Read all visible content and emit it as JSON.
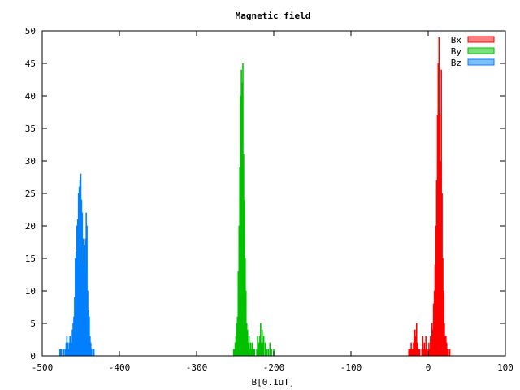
{
  "chart_data": {
    "type": "bar",
    "title": "Magnetic field",
    "xlabel": "B[0.1uT]",
    "ylabel": "",
    "xlim": [
      -500,
      100
    ],
    "ylim": [
      0,
      50
    ],
    "xticks": [
      "-500",
      "-400",
      "-300",
      "-200",
      "-100",
      "0",
      "100"
    ],
    "yticks": [
      "0",
      "5",
      "10",
      "15",
      "20",
      "25",
      "30",
      "35",
      "40",
      "45",
      "50"
    ],
    "grid": false,
    "legend": "top-right",
    "series": [
      {
        "name": "Bx",
        "color": "#ff0000",
        "legend_color": "#ff7f7f",
        "bins": [
          [
            -25,
            1
          ],
          [
            -24,
            1
          ],
          [
            -23,
            1
          ],
          [
            -22,
            2
          ],
          [
            -21,
            1
          ],
          [
            -20,
            1
          ],
          [
            -19,
            2
          ],
          [
            -18,
            4
          ],
          [
            -17,
            4
          ],
          [
            -16,
            3
          ],
          [
            -15,
            5
          ],
          [
            -14,
            2
          ],
          [
            -13,
            1
          ],
          [
            -12,
            1
          ],
          [
            -11,
            1
          ],
          [
            -8,
            1
          ],
          [
            -7,
            3
          ],
          [
            -6,
            1
          ],
          [
            -5,
            2
          ],
          [
            -4,
            1
          ],
          [
            -3,
            3
          ],
          [
            -2,
            1
          ],
          [
            0,
            1
          ],
          [
            1,
            2
          ],
          [
            2,
            1
          ],
          [
            3,
            3
          ],
          [
            4,
            2
          ],
          [
            5,
            5
          ],
          [
            6,
            4
          ],
          [
            7,
            8
          ],
          [
            8,
            10
          ],
          [
            9,
            14
          ],
          [
            10,
            20
          ],
          [
            11,
            27
          ],
          [
            12,
            37
          ],
          [
            13,
            45
          ],
          [
            14,
            49
          ],
          [
            15,
            37
          ],
          [
            16,
            30
          ],
          [
            17,
            44
          ],
          [
            18,
            25
          ],
          [
            19,
            15
          ],
          [
            20,
            10
          ],
          [
            21,
            5
          ],
          [
            22,
            3
          ],
          [
            23,
            3
          ],
          [
            24,
            2
          ],
          [
            25,
            1
          ],
          [
            26,
            1
          ],
          [
            28,
            1
          ]
        ]
      },
      {
        "name": "By",
        "color": "#00c000",
        "legend_color": "#7fe07f",
        "bins": [
          [
            -252,
            1
          ],
          [
            -251,
            1
          ],
          [
            -250,
            2
          ],
          [
            -249,
            3
          ],
          [
            -248,
            5
          ],
          [
            -247,
            6
          ],
          [
            -246,
            13
          ],
          [
            -245,
            20
          ],
          [
            -244,
            29
          ],
          [
            -243,
            40
          ],
          [
            -242,
            44
          ],
          [
            -241,
            42
          ],
          [
            -240,
            45
          ],
          [
            -239,
            31
          ],
          [
            -238,
            24
          ],
          [
            -237,
            15
          ],
          [
            -236,
            10
          ],
          [
            -235,
            5
          ],
          [
            -234,
            4
          ],
          [
            -233,
            2
          ],
          [
            -232,
            3
          ],
          [
            -231,
            1
          ],
          [
            -230,
            2
          ],
          [
            -229,
            1
          ],
          [
            -228,
            2
          ],
          [
            -226,
            1
          ],
          [
            -225,
            1
          ],
          [
            -222,
            1
          ],
          [
            -221,
            3
          ],
          [
            -220,
            2
          ],
          [
            -219,
            2
          ],
          [
            -218,
            3
          ],
          [
            -217,
            5
          ],
          [
            -216,
            2
          ],
          [
            -215,
            4
          ],
          [
            -214,
            2
          ],
          [
            -213,
            3
          ],
          [
            -211,
            2
          ],
          [
            -209,
            1
          ],
          [
            -207,
            1
          ],
          [
            -205,
            2
          ],
          [
            -203,
            1
          ],
          [
            -200,
            1
          ]
        ]
      },
      {
        "name": "Bz",
        "color": "#0080ff",
        "legend_color": "#7fbfff",
        "bins": [
          [
            -477,
            1
          ],
          [
            -476,
            1
          ],
          [
            -475,
            1
          ],
          [
            -472,
            1
          ],
          [
            -470,
            1
          ],
          [
            -469,
            2
          ],
          [
            -468,
            3
          ],
          [
            -467,
            2
          ],
          [
            -466,
            1
          ],
          [
            -465,
            2
          ],
          [
            -464,
            3
          ],
          [
            -463,
            3
          ],
          [
            -462,
            2
          ],
          [
            -461,
            4
          ],
          [
            -460,
            5
          ],
          [
            -459,
            6
          ],
          [
            -458,
            9
          ],
          [
            -457,
            15
          ],
          [
            -456,
            16
          ],
          [
            -455,
            20
          ],
          [
            -454,
            21
          ],
          [
            -453,
            25
          ],
          [
            -452,
            26
          ],
          [
            -451,
            27
          ],
          [
            -450,
            28
          ],
          [
            -449,
            24
          ],
          [
            -448,
            22
          ],
          [
            -447,
            18
          ],
          [
            -446,
            14
          ],
          [
            -445,
            17
          ],
          [
            -444,
            18
          ],
          [
            -443,
            22
          ],
          [
            -442,
            20
          ],
          [
            -441,
            10
          ],
          [
            -440,
            7
          ],
          [
            -439,
            6
          ],
          [
            -438,
            3
          ],
          [
            -437,
            2
          ],
          [
            -436,
            1
          ],
          [
            -434,
            1
          ],
          [
            -433,
            1
          ]
        ]
      }
    ]
  }
}
